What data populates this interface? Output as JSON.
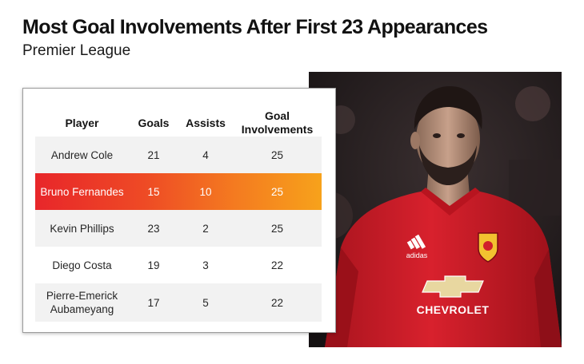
{
  "header": {
    "title": "Most Goal Involvements After First 23 Appearances",
    "subtitle": "Premier League"
  },
  "table": {
    "columns": [
      "Player",
      "Goals",
      "Assists",
      "Goal\nInvolvements"
    ],
    "rows": [
      {
        "player": "Andrew Cole",
        "goals": "21",
        "assists": "4",
        "goal_involvements": "25"
      },
      {
        "player": "Bruno Fernandes",
        "goals": "15",
        "assists": "10",
        "goal_involvements": "25",
        "highlighted": true
      },
      {
        "player": "Kevin Phillips",
        "goals": "23",
        "assists": "2",
        "goal_involvements": "25"
      },
      {
        "player": "Diego Costa",
        "goals": "19",
        "assists": "3",
        "goal_involvements": "22"
      },
      {
        "player": "Pierre-Emerick\nAubameyang",
        "goals": "17",
        "assists": "5",
        "goal_involvements": "22"
      }
    ]
  },
  "photo": {
    "shirt_sponsor": "CHEVROLET",
    "kit_brand": "adidas"
  },
  "colors": {
    "highlight_gradient": [
      "#e8262a",
      "#f7a21b"
    ],
    "shirt_red": "#d01f2b"
  }
}
